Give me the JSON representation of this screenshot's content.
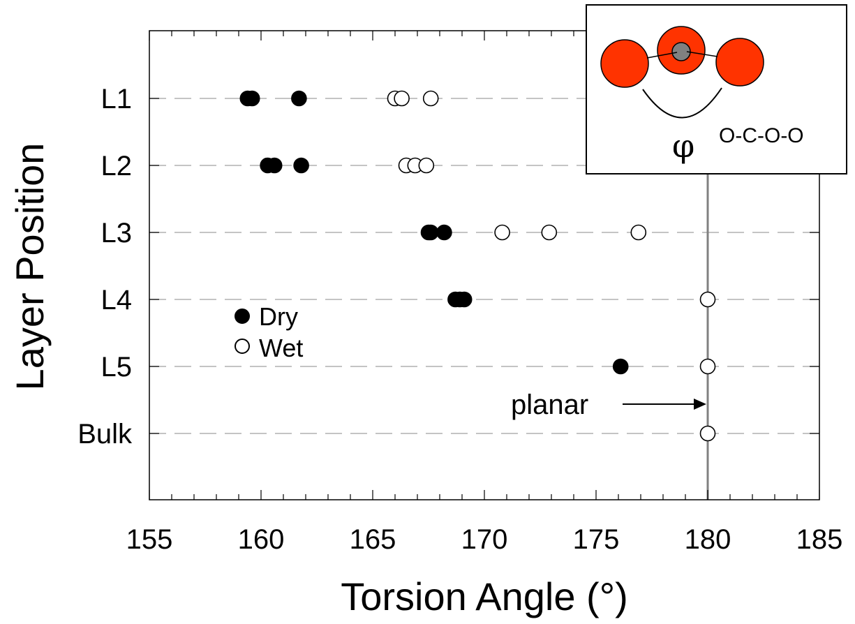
{
  "chart_data": {
    "type": "scatter",
    "xlabel": "Torsion Angle  (°)",
    "ylabel": "Layer Position",
    "xlim": [
      155,
      185
    ],
    "x_ticks": [
      155,
      160,
      165,
      170,
      175,
      180,
      185
    ],
    "categories": [
      "L1",
      "L2",
      "L3",
      "L4",
      "L5",
      "Bulk"
    ],
    "grid": "horizontal dashed",
    "legend_position": "left",
    "series": [
      {
        "name": "Dry",
        "marker": "filled-circle",
        "color": "#000000",
        "points": [
          {
            "category": "L1",
            "x": 159.4
          },
          {
            "category": "L1",
            "x": 159.6
          },
          {
            "category": "L1",
            "x": 161.7
          },
          {
            "category": "L2",
            "x": 160.3
          },
          {
            "category": "L2",
            "x": 160.6
          },
          {
            "category": "L2",
            "x": 161.8
          },
          {
            "category": "L3",
            "x": 167.5
          },
          {
            "category": "L3",
            "x": 167.6
          },
          {
            "category": "L3",
            "x": 168.2
          },
          {
            "category": "L4",
            "x": 168.7
          },
          {
            "category": "L4",
            "x": 168.9
          },
          {
            "category": "L4",
            "x": 169.1
          },
          {
            "category": "L5",
            "x": 176.1
          }
        ]
      },
      {
        "name": "Wet",
        "marker": "open-circle",
        "color": "#ffffff",
        "points": [
          {
            "category": "L1",
            "x": 166.0
          },
          {
            "category": "L1",
            "x": 166.3
          },
          {
            "category": "L1",
            "x": 167.6
          },
          {
            "category": "L2",
            "x": 166.5
          },
          {
            "category": "L2",
            "x": 166.9
          },
          {
            "category": "L2",
            "x": 167.4
          },
          {
            "category": "L3",
            "x": 170.8
          },
          {
            "category": "L3",
            "x": 172.9
          },
          {
            "category": "L3",
            "x": 176.9
          },
          {
            "category": "L4",
            "x": 180.0
          },
          {
            "category": "L5",
            "x": 180.0
          },
          {
            "category": "Bulk",
            "x": 180.0
          }
        ]
      }
    ],
    "reference_line": {
      "x": 180,
      "color": "#808080"
    },
    "annotation": {
      "text": "planar",
      "points_to_x": 180
    },
    "inset": {
      "label": "O-C-O-O",
      "symbol": "φ",
      "atom_color": "#ff3300",
      "center_atom_color": "#808080"
    }
  }
}
